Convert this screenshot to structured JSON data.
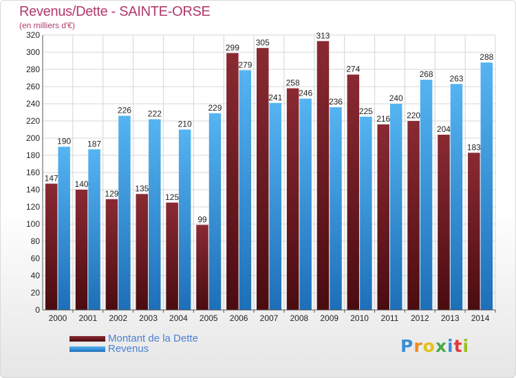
{
  "header": {
    "title": "Revenus/Dette - SAINTE-ORSE",
    "subtitle": "(en milliers d'€)"
  },
  "chart_data": {
    "type": "bar",
    "categories": [
      "2000",
      "2001",
      "2002",
      "2003",
      "2004",
      "2005",
      "2006",
      "2007",
      "2008",
      "2009",
      "2010",
      "2011",
      "2012",
      "2013",
      "2014"
    ],
    "series": [
      {
        "name": "Montant de la Dette",
        "values": [
          147,
          140,
          129,
          135,
          125,
          99,
          299,
          305,
          258,
          313,
          274,
          216,
          220,
          204,
          183
        ],
        "color": "#7a1f28"
      },
      {
        "name": "Revenus",
        "values": [
          190,
          187,
          226,
          222,
          210,
          229,
          279,
          241,
          246,
          236,
          225,
          240,
          268,
          263,
          288
        ],
        "color": "#3a9ee4"
      }
    ],
    "ylim": [
      0,
      320
    ],
    "yticks": [
      0,
      20,
      40,
      60,
      80,
      100,
      120,
      140,
      160,
      180,
      200,
      220,
      240,
      260,
      280,
      300,
      320
    ],
    "grid": true,
    "legend_position": "bottom-left"
  },
  "colors": {
    "title": "#b0386a",
    "legend_text": "#4a7fd4",
    "debt_dark": "#4a0c10",
    "revenue_dark": "#1d6fb8"
  },
  "brand": {
    "letters": [
      "P",
      "r",
      "o",
      "x",
      "i",
      "t",
      "i"
    ],
    "letter_colors": [
      "#3a8fd6",
      "#f08a1c",
      "#e0c21a",
      "#4aa84a",
      "#3a8fd6",
      "#e23a3a",
      "#9ac21c"
    ]
  }
}
